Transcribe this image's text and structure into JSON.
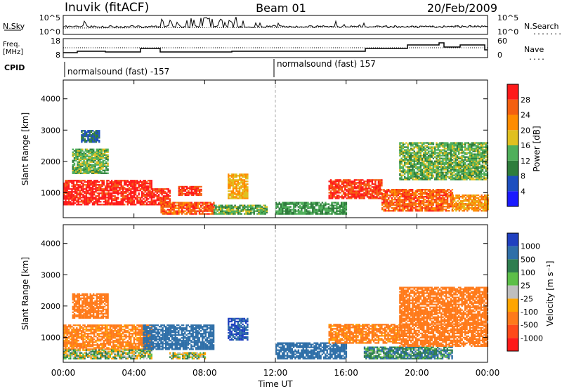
{
  "header": {
    "station": "Inuvik (fitACF)",
    "beam": "Beam 01",
    "date": "20/Feb/2009"
  },
  "nsky_panel": {
    "left_label": "N.Sky",
    "left_ticks": [
      "10^5",
      "10^0"
    ],
    "right_ticks": [
      "10^5",
      "10^0"
    ],
    "right_label": "N.Search",
    "right_legend_line": "........"
  },
  "freq_panel": {
    "left_label_1": "Freq.",
    "left_label_2": "[MHz]",
    "left_ticks": [
      "18",
      "8"
    ],
    "right_ticks": [
      "60",
      "0"
    ],
    "right_label": "Nave",
    "right_legend_line": "...."
  },
  "cpid_panel": {
    "label": "CPID",
    "segments": [
      {
        "text": "normalsound (fast) -157"
      },
      {
        "text": "normalsound (fast) 157"
      }
    ]
  },
  "time_axis": {
    "ticks": [
      "00:00",
      "04:00",
      "08:00",
      "12:00",
      "16:00",
      "20:00",
      "00:00"
    ],
    "label": "Time UT"
  },
  "power_panel": {
    "y_label": "Slant Range [km]",
    "y_ticks": [
      "4000",
      "3000",
      "2000",
      "1000"
    ],
    "colorbar_label": "Power [dB]",
    "colorbar_ticks": [
      "28",
      "24",
      "20",
      "16",
      "12",
      "8",
      "4"
    ],
    "colors": [
      "#1a1aff",
      "#1d4fbf",
      "#2e7d3c",
      "#4faf5a",
      "#e0c020",
      "#ff8c00",
      "#f46010",
      "#ff1a1a"
    ]
  },
  "velocity_panel": {
    "y_label": "Slant Range [km]",
    "y_ticks": [
      "4000",
      "3000",
      "2000",
      "1000"
    ],
    "colorbar_label": "Velocity [m s⁻¹]",
    "colorbar_ticks": [
      "1000",
      "500",
      "100",
      "25",
      "-25",
      "-100",
      "-500",
      "-1000"
    ],
    "colors": [
      "#2040c0",
      "#2f6fa8",
      "#2e7d4f",
      "#5cbf48",
      "#bfbfbf",
      "#ffa500",
      "#ff7a1a",
      "#ff4a1a",
      "#ff1a1a"
    ]
  },
  "chart_data": [
    {
      "type": "heatmap",
      "title": "Power",
      "xlabel": "Time UT",
      "ylabel": "Slant Range [km]",
      "xlim": [
        0,
        24
      ],
      "ylim": [
        200,
        4600
      ],
      "colorbar_range": [
        0,
        32
      ],
      "regions": [
        {
          "t0": 0.0,
          "t1": 5.0,
          "r0": 600,
          "r1": 1400,
          "value": 30
        },
        {
          "t0": 5.0,
          "t1": 6.0,
          "r0": 600,
          "r1": 1100,
          "value": 29
        },
        {
          "t0": 5.5,
          "t1": 8.5,
          "r0": 300,
          "r1": 700,
          "value": 26
        },
        {
          "t0": 6.5,
          "t1": 7.8,
          "r0": 900,
          "r1": 1200,
          "value": 28
        },
        {
          "t0": 8.5,
          "t1": 11.5,
          "r0": 300,
          "r1": 600,
          "value": 14
        },
        {
          "t0": 9.3,
          "t1": 10.4,
          "r0": 800,
          "r1": 1600,
          "value": 20
        },
        {
          "t0": 12.0,
          "t1": 16.0,
          "r0": 300,
          "r1": 700,
          "value": 12
        },
        {
          "t0": 15.0,
          "t1": 18.0,
          "r0": 800,
          "r1": 1400,
          "value": 28
        },
        {
          "t0": 18.0,
          "t1": 22.0,
          "r0": 400,
          "r1": 1100,
          "value": 26
        },
        {
          "t0": 22.0,
          "t1": 24.0,
          "r0": 400,
          "r1": 900,
          "value": 22
        },
        {
          "t0": 0.5,
          "t1": 2.5,
          "r0": 1600,
          "r1": 2400,
          "value": 14
        },
        {
          "t0": 1.0,
          "t1": 2.0,
          "r0": 2600,
          "r1": 3000,
          "value": 8
        },
        {
          "t0": 19.0,
          "t1": 24.0,
          "r0": 1400,
          "r1": 2600,
          "value": 14
        }
      ]
    },
    {
      "type": "heatmap",
      "title": "Velocity",
      "xlabel": "Time UT",
      "ylabel": "Slant Range [km]",
      "xlim": [
        0,
        24
      ],
      "ylim": [
        200,
        4600
      ],
      "colorbar_range": [
        -1000,
        1000
      ],
      "regions": [
        {
          "t0": 0.0,
          "t1": 5.0,
          "r0": 600,
          "r1": 1400,
          "value": -150
        },
        {
          "t0": 0.0,
          "t1": 5.0,
          "r0": 300,
          "r1": 600,
          "value": 0
        },
        {
          "t0": 4.5,
          "t1": 8.5,
          "r0": 600,
          "r1": 1400,
          "value": 200
        },
        {
          "t0": 6.0,
          "t1": 8.0,
          "r0": 300,
          "r1": 500,
          "value": 0
        },
        {
          "t0": 9.3,
          "t1": 10.4,
          "r0": 900,
          "r1": 1600,
          "value": 500
        },
        {
          "t0": 12.0,
          "t1": 16.0,
          "r0": 300,
          "r1": 800,
          "value": 200
        },
        {
          "t0": 15.0,
          "t1": 19.0,
          "r0": 800,
          "r1": 1400,
          "value": -150
        },
        {
          "t0": 17.0,
          "t1": 22.0,
          "r0": 300,
          "r1": 700,
          "value": 70
        },
        {
          "t0": 19.0,
          "t1": 24.0,
          "r0": 700,
          "r1": 1400,
          "value": -200
        },
        {
          "t0": 0.5,
          "t1": 2.5,
          "r0": 1600,
          "r1": 2400,
          "value": -200
        },
        {
          "t0": 19.0,
          "t1": 24.0,
          "r0": 1400,
          "r1": 2600,
          "value": -200
        }
      ]
    }
  ]
}
